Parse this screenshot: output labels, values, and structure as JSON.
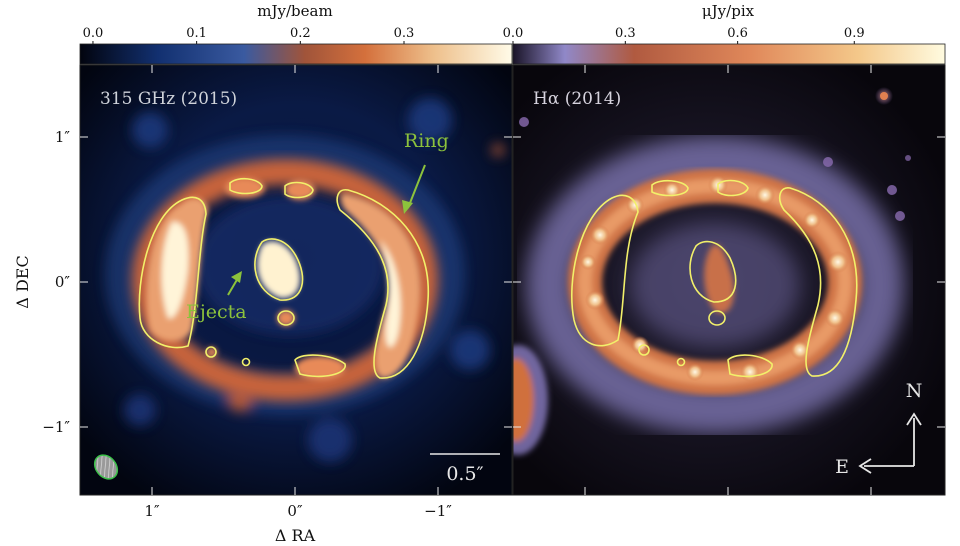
{
  "figure": {
    "left_panel": {
      "label": "315 GHz (2015)",
      "colorbar": {
        "unit": "mJy/beam",
        "ticks": [
          "0.0",
          "0.1",
          "0.2",
          "0.3"
        ]
      },
      "annotations": {
        "ring": "Ring",
        "ejecta": "Ejecta"
      },
      "scalebar": "0.5″",
      "colormap": [
        "#00000a",
        "#0c1a40",
        "#2a4f96",
        "#c25a2c",
        "#e8875a",
        "#f7e8c4",
        "#ffffff"
      ]
    },
    "right_panel": {
      "label": "Hα (2014)",
      "colorbar": {
        "unit": "μJy/pix",
        "ticks": [
          "0.0",
          "0.3",
          "0.6",
          "0.9"
        ]
      },
      "compass": {
        "north": "N",
        "east": "E"
      },
      "colormap": [
        "#0a0610",
        "#3c3058",
        "#8a7cb8",
        "#c06638",
        "#f0a070",
        "#fff4c4"
      ]
    },
    "axes": {
      "xlabel": "Δ RA",
      "ylabel": "Δ DEC",
      "xticks": [
        "1″",
        "0″",
        "−1″"
      ],
      "yticks": [
        "1″",
        "0″",
        "−1″"
      ]
    },
    "contour_color": "#f2f06a",
    "annotation_color": "#8cc23c"
  }
}
